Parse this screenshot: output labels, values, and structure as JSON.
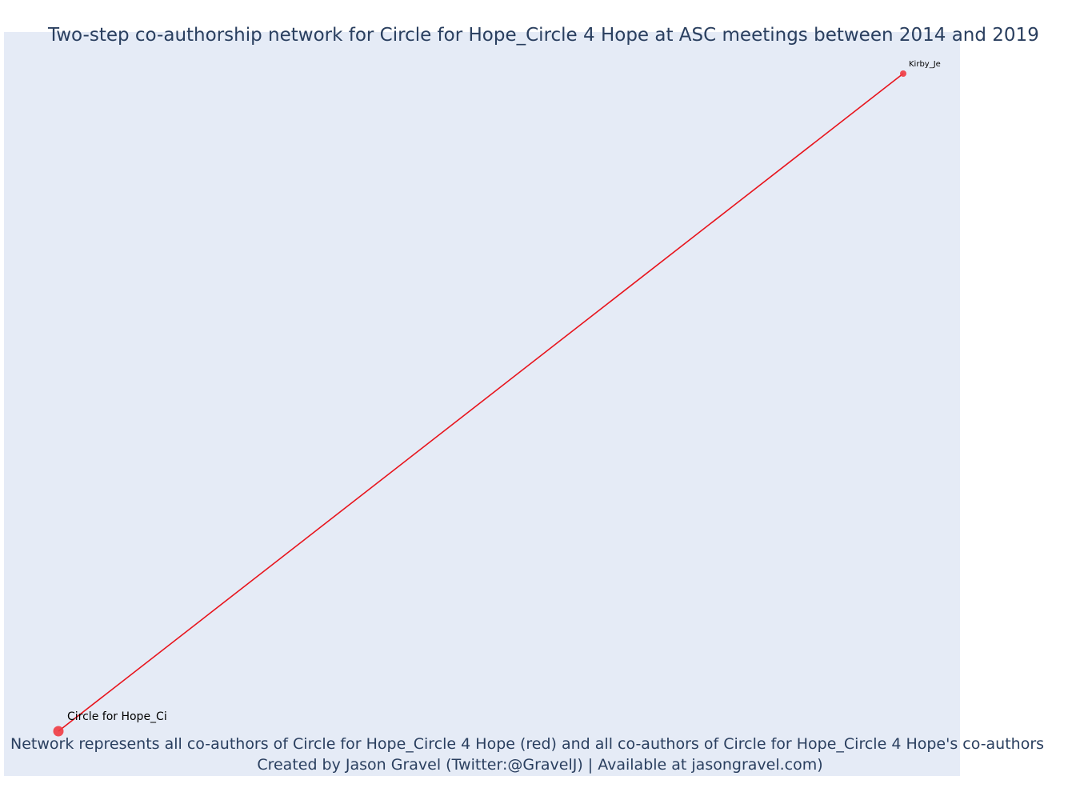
{
  "title": "Two-step co-authorship network for Circle for Hope_Circle 4 Hope at ASC meetings between 2014 and 2019",
  "caption": {
    "line1": "Network represents all co-authors of Circle for Hope_Circle 4 Hope (red) and all co-authors of Circle for Hope_Circle 4 Hope's co-authors",
    "line2": "Created by Jason Gravel (Twitter:@GravelJ) | Available at jasongravel.com)"
  },
  "colors": {
    "edge": "#e8141c",
    "node": "#ef3b42",
    "background": "#e5ebf6",
    "text": "#2a3f5f"
  },
  "nodes": [
    {
      "id": "circle",
      "label": "Circle for Hope_Ci",
      "role": "focal",
      "x": 0,
      "y": 0
    },
    {
      "id": "kirby",
      "label": "Kirby_Je",
      "role": "coauthor",
      "x": 1,
      "y": 1
    }
  ],
  "edges": [
    {
      "source": "circle",
      "target": "kirby"
    }
  ]
}
